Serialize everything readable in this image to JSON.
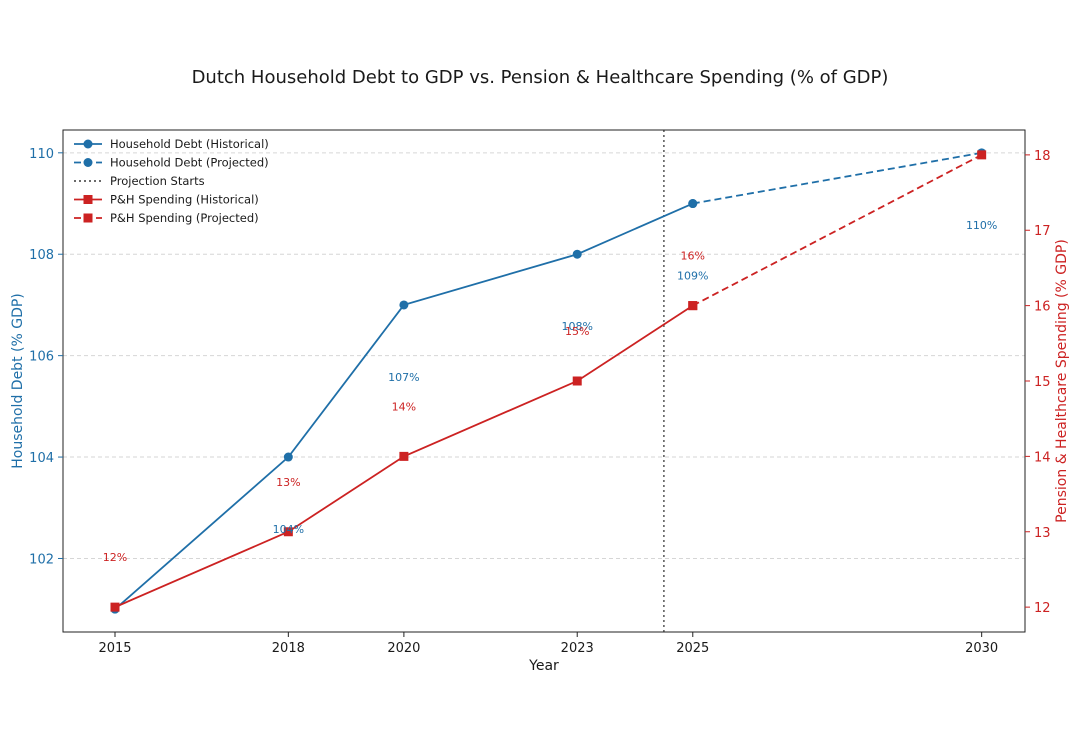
{
  "chart_data": {
    "type": "line",
    "title": "Dutch Household Debt to GDP vs. Pension & Healthcare Spending (% of GDP)",
    "xlabel": "Year",
    "ylabel_left": "Household Debt (% GDP)",
    "ylabel_right": "Pension & Healthcare Spending (% GDP)",
    "x_ticks": [
      "2015",
      "2018",
      "2020",
      "2023",
      "2025",
      "2030"
    ],
    "xlim": [
      2014.1,
      2030.75
    ],
    "ylim_left": [
      100.55,
      110.45
    ],
    "ylim_right": [
      11.67,
      18.33
    ],
    "y_ticks_left": [
      "102",
      "104",
      "106",
      "108",
      "110"
    ],
    "y_ticks_right": [
      "12",
      "13",
      "14",
      "15",
      "16",
      "17",
      "18"
    ],
    "projection_start": 2024.5,
    "colors": {
      "debt": "#1f6fa8",
      "spending": "#cc2222",
      "projection_line": "#555555",
      "grid": "#d6d6d6"
    },
    "series": [
      {
        "name": "Household Debt (Historical)",
        "axis": "left",
        "style": "solid",
        "marker": "circle",
        "x": [
          2015,
          2018,
          2020,
          2023,
          2025
        ],
        "values": [
          101,
          104,
          107,
          108,
          109
        ]
      },
      {
        "name": "Household Debt (Projected)",
        "axis": "left",
        "style": "dashed",
        "marker": "circle",
        "x": [
          2025,
          2030
        ],
        "values": [
          109,
          110
        ]
      },
      {
        "name": "P&H Spending (Historical)",
        "axis": "right",
        "style": "solid",
        "marker": "square",
        "x": [
          2015,
          2018,
          2020,
          2023,
          2025
        ],
        "values": [
          12,
          13,
          14,
          15,
          16
        ]
      },
      {
        "name": "P&H Spending (Projected)",
        "axis": "right",
        "style": "dashed",
        "marker": "square",
        "x": [
          2025,
          2030
        ],
        "values": [
          16,
          18
        ]
      }
    ],
    "legend": [
      {
        "label": "Household Debt (Historical)",
        "color": "#1f6fa8",
        "style": "solid",
        "marker": "circle"
      },
      {
        "label": "Household Debt (Projected)",
        "color": "#1f6fa8",
        "style": "dashed",
        "marker": "circle"
      },
      {
        "label": "Projection Starts",
        "color": "#555555",
        "style": "dotted",
        "marker": "none"
      },
      {
        "label": "P&H Spending (Historical)",
        "color": "#cc2222",
        "style": "solid",
        "marker": "square"
      },
      {
        "label": "P&H Spending (Projected)",
        "color": "#cc2222",
        "style": "dashed",
        "marker": "square"
      }
    ],
    "legend_position": "top-left",
    "debt_labels": [
      {
        "x": 2018,
        "text": "104%"
      },
      {
        "x": 2020,
        "text": "107%"
      },
      {
        "x": 2023,
        "text": "108%"
      },
      {
        "x": 2025,
        "text": "109%"
      },
      {
        "x": 2030,
        "text": "110%"
      }
    ],
    "spending_labels": [
      {
        "x": 2015,
        "text": "12%"
      },
      {
        "x": 2018,
        "text": "13%"
      },
      {
        "x": 2020,
        "text": "14%"
      },
      {
        "x": 2023,
        "text": "15%"
      },
      {
        "x": 2025,
        "text": "16%"
      }
    ]
  }
}
